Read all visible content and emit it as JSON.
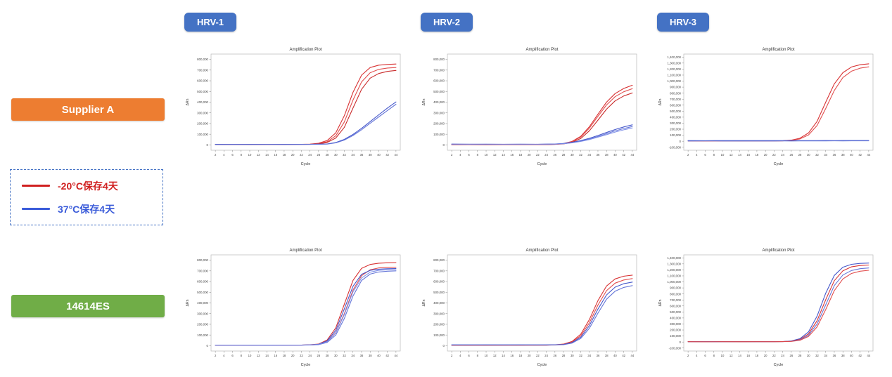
{
  "header": {
    "badge_color": "#4472C4",
    "columns": [
      {
        "label": "HRV-1"
      },
      {
        "label": "HRV-2"
      },
      {
        "label": "HRV-3"
      }
    ]
  },
  "rows": [
    {
      "label": "Supplier A",
      "color": "#ED7D31"
    },
    {
      "label": "14614ES",
      "color": "#70AD47"
    }
  ],
  "legend": {
    "border_color": "#4472C4",
    "items": [
      {
        "label": "-20°C保存4天",
        "color": "#D02020"
      },
      {
        "label": "37°C保存4天",
        "color": "#3A5BD9"
      }
    ]
  },
  "chart_data": [
    {
      "type": "line",
      "row": "Supplier A",
      "column": "HRV-1",
      "title": "Amplification Plot",
      "xlabel": "Cycle",
      "ylabel": "ΔRn",
      "xlim": [
        1,
        45
      ],
      "ylim": [
        -50000,
        850000
      ],
      "xticks": [
        2,
        4,
        6,
        8,
        10,
        12,
        14,
        16,
        18,
        20,
        22,
        24,
        26,
        28,
        30,
        32,
        34,
        36,
        38,
        40,
        42,
        44
      ],
      "yticks": [
        0,
        100000,
        200000,
        300000,
        400000,
        500000,
        600000,
        700000,
        800000
      ],
      "x": [
        2,
        6,
        10,
        14,
        18,
        22,
        24,
        26,
        28,
        30,
        32,
        34,
        36,
        38,
        40,
        42,
        44
      ],
      "series": [
        {
          "name": "-20°C保存4天 rep1",
          "color": "#D62728",
          "y": [
            4000,
            5000,
            4500,
            5000,
            5500,
            6000,
            7000,
            16000,
            41000,
            112000,
            273000,
            492000,
            653000,
            724000,
            746000,
            753000,
            757000
          ]
        },
        {
          "name": "-20°C保存4天 rep2",
          "color": "#E04545",
          "y": [
            5000,
            4000,
            5000,
            4500,
            5000,
            5500,
            6000,
            12000,
            30000,
            85000,
            215000,
            420000,
            590000,
            675000,
            707000,
            719000,
            724000
          ]
        },
        {
          "name": "-20°C保存4天 rep3",
          "color": "#C62020",
          "y": [
            4500,
            5500,
            4000,
            5000,
            4500,
            5000,
            5500,
            10000,
            23000,
            64000,
            165000,
            345000,
            520000,
            625000,
            668000,
            688000,
            697000
          ]
        },
        {
          "name": "37°C保存4天 rep1",
          "color": "#3A4EC8",
          "y": [
            5000,
            4500,
            5000,
            5500,
            5000,
            5500,
            6000,
            7000,
            9000,
            22000,
            52000,
            98000,
            155000,
            218000,
            282000,
            345000,
            402000
          ]
        },
        {
          "name": "37°C保存4天 rep2",
          "color": "#5D6FD6",
          "y": [
            4000,
            5000,
            4500,
            5000,
            4500,
            5000,
            5500,
            6500,
            8000,
            19000,
            45000,
            88000,
            142000,
            202000,
            262000,
            322000,
            380000
          ]
        }
      ]
    },
    {
      "type": "line",
      "row": "Supplier A",
      "column": "HRV-2",
      "title": "Amplification Plot",
      "xlabel": "Cycle",
      "ylabel": "ΔRn",
      "xlim": [
        1,
        45
      ],
      "ylim": [
        -50000,
        850000
      ],
      "xticks": [
        2,
        4,
        6,
        8,
        10,
        12,
        14,
        16,
        18,
        20,
        22,
        24,
        26,
        28,
        30,
        32,
        34,
        36,
        38,
        40,
        42,
        44
      ],
      "yticks": [
        0,
        100000,
        200000,
        300000,
        400000,
        500000,
        600000,
        700000,
        800000
      ],
      "x": [
        2,
        6,
        10,
        14,
        18,
        22,
        24,
        26,
        28,
        30,
        32,
        34,
        36,
        38,
        40,
        42,
        44
      ],
      "series": [
        {
          "name": "-20°C保存4天 rep1",
          "color": "#D62728",
          "y": [
            2000,
            3000,
            2500,
            3000,
            2500,
            3000,
            3000,
            6000,
            13000,
            33000,
            80000,
            170000,
            287000,
            400000,
            480000,
            528000,
            558000
          ]
        },
        {
          "name": "-20°C保存4天 rep2",
          "color": "#E04545",
          "y": [
            3000,
            2500,
            3000,
            2500,
            3000,
            2500,
            3000,
            5500,
            12000,
            30000,
            73000,
            157000,
            267000,
            374000,
            451000,
            497000,
            526000
          ]
        },
        {
          "name": "-20°C保存4天 rep3",
          "color": "#C62020",
          "y": [
            2500,
            3000,
            2000,
            3000,
            2500,
            3000,
            2500,
            5000,
            10000,
            24000,
            60000,
            132000,
            232000,
            334000,
            412000,
            458000,
            486000
          ]
        },
        {
          "name": "37°C保存4天 rep1",
          "color": "#3A4EC8",
          "y": [
            8000,
            6000,
            6500,
            6000,
            6500,
            6000,
            7000,
            9000,
            14000,
            24000,
            40000,
            62000,
            88000,
            116000,
            144000,
            168000,
            188000
          ]
        },
        {
          "name": "37°C保存4天 rep2",
          "color": "#5D6FD6",
          "y": [
            6000,
            7000,
            6000,
            6500,
            6000,
            6500,
            7000,
            8000,
            12000,
            21000,
            35000,
            55000,
            79000,
            105000,
            131000,
            153000,
            172000
          ]
        },
        {
          "name": "37°C保存4天 rep3",
          "color": "#7B8CE8",
          "y": [
            7000,
            6000,
            7000,
            6000,
            7000,
            6000,
            6500,
            8000,
            11000,
            19000,
            32000,
            50000,
            72000,
            96000,
            120000,
            141000,
            159000
          ]
        }
      ]
    },
    {
      "type": "line",
      "row": "Supplier A",
      "column": "HRV-3",
      "title": "Amplification Plot",
      "xlabel": "Cycle",
      "ylabel": "ΔRn",
      "xlim": [
        1,
        45
      ],
      "ylim": [
        -150000,
        1450000
      ],
      "xticks": [
        2,
        4,
        6,
        8,
        10,
        12,
        14,
        16,
        18,
        20,
        22,
        24,
        26,
        28,
        30,
        32,
        34,
        36,
        38,
        40,
        42,
        44
      ],
      "yticks": [
        -100000,
        0,
        100000,
        200000,
        300000,
        400000,
        500000,
        600000,
        700000,
        800000,
        900000,
        1000000,
        1100000,
        1200000,
        1300000,
        1400000
      ],
      "x": [
        2,
        6,
        10,
        14,
        18,
        22,
        24,
        26,
        28,
        30,
        32,
        34,
        36,
        38,
        40,
        42,
        44
      ],
      "series": [
        {
          "name": "-20°C保存4天 rep1",
          "color": "#D62728",
          "y": [
            5000,
            4000,
            5000,
            4500,
            5000,
            5500,
            7000,
            18000,
            50000,
            137000,
            330000,
            650000,
            955000,
            1140000,
            1235000,
            1272000,
            1288000
          ]
        },
        {
          "name": "-20°C保存4天 rep2",
          "color": "#E04545",
          "y": [
            4000,
            5000,
            4000,
            5000,
            4500,
            5000,
            6000,
            14000,
            38000,
            105000,
            262000,
            545000,
            845000,
            1060000,
            1165000,
            1215000,
            1237000
          ]
        },
        {
          "name": "37°C保存4天 rep1",
          "color": "#3A4EC8",
          "y": [
            10000,
            9000,
            10000,
            9500,
            10000,
            9500,
            10000,
            10000,
            10500,
            10000,
            10500,
            11000,
            10500,
            11000,
            11500,
            11000,
            11500
          ]
        },
        {
          "name": "37°C保存4天 rep2",
          "color": "#5D6FD6",
          "y": [
            4000,
            5000,
            4000,
            4500,
            4000,
            4500,
            5000,
            4500,
            5000,
            5500,
            5000,
            5500,
            6000,
            5500,
            6000,
            6500,
            6000
          ]
        }
      ]
    },
    {
      "type": "line",
      "row": "14614ES",
      "column": "HRV-1",
      "title": "Amplification Plot",
      "xlabel": "Cycle",
      "ylabel": "ΔRn",
      "xlim": [
        1,
        45
      ],
      "ylim": [
        -50000,
        850000
      ],
      "xticks": [
        2,
        4,
        6,
        8,
        10,
        12,
        14,
        16,
        18,
        20,
        22,
        24,
        26,
        28,
        30,
        32,
        34,
        36,
        38,
        40,
        42,
        44
      ],
      "yticks": [
        0,
        100000,
        200000,
        300000,
        400000,
        500000,
        600000,
        700000,
        800000
      ],
      "x": [
        2,
        6,
        10,
        14,
        18,
        22,
        24,
        26,
        28,
        30,
        32,
        34,
        36,
        38,
        40,
        42,
        44
      ],
      "series": [
        {
          "name": "-20°C保存4天 rep1",
          "color": "#D62728",
          "y": [
            5000,
            4500,
            5000,
            5500,
            5000,
            5500,
            9000,
            15000,
            54000,
            166000,
            389000,
            611000,
            724000,
            760000,
            772000,
            776000,
            778000
          ]
        },
        {
          "name": "-20°C保存4天 rep2",
          "color": "#E04545",
          "y": [
            4000,
            5000,
            4500,
            5000,
            4500,
            5000,
            7000,
            11000,
            38000,
            122000,
            300000,
            520000,
            655000,
            710000,
            728000,
            733000,
            735000
          ]
        },
        {
          "name": "37°C保存4天 rep1",
          "color": "#3A4EC8",
          "y": [
            5000,
            5500,
            5000,
            4500,
            5000,
            5500,
            8000,
            13000,
            45000,
            143000,
            345000,
            556000,
            668000,
            705000,
            716000,
            720000,
            722000
          ]
        },
        {
          "name": "37°C保存4天 rep2",
          "color": "#5D6FD6",
          "y": [
            4500,
            5000,
            4500,
            5000,
            5500,
            5000,
            6500,
            9000,
            31000,
            100000,
            255000,
            465000,
            610000,
            670000,
            690000,
            697000,
            700000
          ]
        },
        {
          "name": "37°C保存4天 rep3",
          "color": "#7B8CE8",
          "y": [
            5000,
            4500,
            5500,
            5000,
            4500,
            5500,
            7000,
            11000,
            37000,
            118000,
            291000,
            504000,
            634000,
            688000,
            705000,
            710000,
            712000
          ]
        }
      ]
    },
    {
      "type": "line",
      "row": "14614ES",
      "column": "HRV-2",
      "title": "Amplification Plot",
      "xlabel": "Cycle",
      "ylabel": "ΔRn",
      "xlim": [
        1,
        45
      ],
      "ylim": [
        -50000,
        850000
      ],
      "xticks": [
        2,
        4,
        6,
        8,
        10,
        12,
        14,
        16,
        18,
        20,
        22,
        24,
        26,
        28,
        30,
        32,
        34,
        36,
        38,
        40,
        42,
        44
      ],
      "yticks": [
        0,
        100000,
        200000,
        300000,
        400000,
        500000,
        600000,
        700000,
        800000
      ],
      "x": [
        2,
        6,
        10,
        14,
        18,
        22,
        24,
        26,
        28,
        30,
        32,
        34,
        36,
        38,
        40,
        42,
        44
      ],
      "series": [
        {
          "name": "-20°C保存4天 rep1",
          "color": "#D62728",
          "y": [
            4000,
            4500,
            4000,
            4500,
            5000,
            4500,
            5000,
            8000,
            15000,
            40000,
            107000,
            244000,
            422000,
            558000,
            625000,
            650000,
            660000
          ]
        },
        {
          "name": "-20°C保存4天 rep2",
          "color": "#E04545",
          "y": [
            4500,
            4000,
            5000,
            4500,
            4000,
            5000,
            4500,
            7000,
            13000,
            34000,
            92000,
            214000,
            380000,
            515000,
            585000,
            615000,
            628000
          ]
        },
        {
          "name": "37°C保存4天 rep1",
          "color": "#3A4EC8",
          "y": [
            8000,
            7000,
            7500,
            7000,
            7500,
            7000,
            7500,
            9000,
            11000,
            29000,
            79000,
            188000,
            342000,
            475000,
            548000,
            580000,
            595000
          ]
        },
        {
          "name": "37°C保存4天 rep2",
          "color": "#5D6FD6",
          "y": [
            7000,
            7500,
            7000,
            7500,
            7000,
            7500,
            7000,
            8000,
            9000,
            24000,
            67000,
            163000,
            305000,
            435000,
            510000,
            545000,
            562000
          ]
        }
      ]
    },
    {
      "type": "line",
      "row": "14614ES",
      "column": "HRV-3",
      "title": "Amplification Plot",
      "xlabel": "Cycle",
      "ylabel": "ΔRn",
      "xlim": [
        1,
        45
      ],
      "ylim": [
        -150000,
        1450000
      ],
      "xticks": [
        2,
        4,
        6,
        8,
        10,
        12,
        14,
        16,
        18,
        20,
        22,
        24,
        26,
        28,
        30,
        32,
        34,
        36,
        38,
        40,
        42,
        44
      ],
      "yticks": [
        -100000,
        0,
        100000,
        200000,
        300000,
        400000,
        500000,
        600000,
        700000,
        800000,
        900000,
        1000000,
        1100000,
        1200000,
        1300000,
        1400000
      ],
      "x": [
        2,
        6,
        10,
        14,
        18,
        22,
        24,
        26,
        28,
        30,
        32,
        34,
        36,
        38,
        40,
        42,
        44
      ],
      "series": [
        {
          "name": "37°C保存4天 rep1",
          "color": "#3A4EC8",
          "y": [
            6000,
            5500,
            6000,
            6500,
            6000,
            6500,
            8000,
            17500,
            56000,
            168000,
            430000,
            812000,
            1108000,
            1245000,
            1292000,
            1308000,
            1313000
          ]
        },
        {
          "name": "-20°C保存4天 rep1",
          "color": "#D62728",
          "y": [
            5000,
            5500,
            5000,
            4500,
            5000,
            5500,
            7000,
            14000,
            44000,
            135000,
            355000,
            705000,
            1020000,
            1185000,
            1250000,
            1273000,
            1281000
          ]
        },
        {
          "name": "37°C保存4天 rep2",
          "color": "#5D6FD6",
          "y": [
            5500,
            6000,
            5500,
            6000,
            5500,
            6000,
            7000,
            12000,
            36000,
            112000,
            300000,
            620000,
            940000,
            1115000,
            1190000,
            1220000,
            1232000
          ]
        },
        {
          "name": "-20°C保存4天 rep2",
          "color": "#E04545",
          "y": [
            5000,
            4500,
            5500,
            5000,
            5500,
            5000,
            6000,
            10000,
            29000,
            92000,
            252000,
            540000,
            855000,
            1050000,
            1140000,
            1178000,
            1193000
          ]
        }
      ]
    }
  ]
}
